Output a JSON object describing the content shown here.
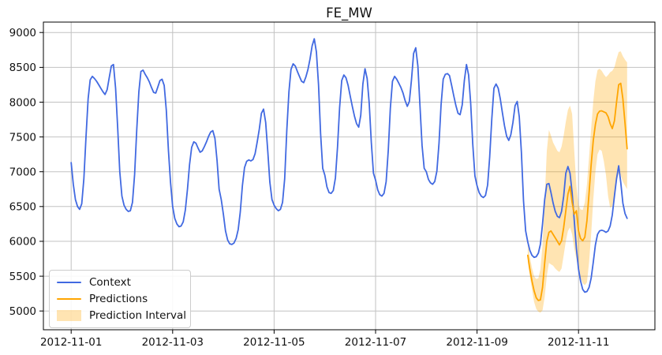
{
  "title": "FE_MW",
  "legend": {
    "items": [
      {
        "label": "Context",
        "type": "line",
        "color": "#4169e1"
      },
      {
        "label": "Predictions",
        "type": "line",
        "color": "#ffa500"
      },
      {
        "label": "Prediction Interval",
        "type": "patch",
        "color": "#ffa500",
        "opacity": 0.3
      }
    ]
  },
  "chart_data": {
    "type": "line",
    "title": "FE_MW",
    "xlabel": "",
    "ylabel": "",
    "grid": true,
    "legend_position": "lower left",
    "x_unit": "hours since 2012-11-01 00:00",
    "xlim": [
      -13.15,
      276.15
    ],
    "ylim": [
      4730,
      9150
    ],
    "x_ticks": [
      {
        "pos": 0,
        "label": "2012-11-01"
      },
      {
        "pos": 48,
        "label": "2012-11-03"
      },
      {
        "pos": 96,
        "label": "2012-11-05"
      },
      {
        "pos": 144,
        "label": "2012-11-07"
      },
      {
        "pos": 192,
        "label": "2012-11-09"
      },
      {
        "pos": 240,
        "label": "2012-11-11"
      }
    ],
    "y_ticks": [
      5000,
      5500,
      6000,
      6500,
      7000,
      7500,
      8000,
      8500,
      9000
    ],
    "colors": {
      "context": "#4169e1",
      "predictions": "#ffa500",
      "interval_fill": "#ffa500",
      "interval_opacity": 0.3,
      "grid": "#c2c2c2",
      "spine": "#000000"
    },
    "series": [
      {
        "name": "Context",
        "color": "#4169e1",
        "x_start": 0,
        "values": [
          7130,
          6820,
          6600,
          6500,
          6460,
          6540,
          6900,
          7500,
          8050,
          8320,
          8370,
          8340,
          8300,
          8250,
          8200,
          8150,
          8110,
          8180,
          8350,
          8520,
          8540,
          8200,
          7620,
          7000,
          6650,
          6520,
          6460,
          6430,
          6440,
          6560,
          6960,
          7600,
          8150,
          8440,
          8460,
          8400,
          8350,
          8290,
          8210,
          8140,
          8130,
          8220,
          8310,
          8330,
          8240,
          7880,
          7300,
          6850,
          6500,
          6330,
          6250,
          6210,
          6220,
          6280,
          6450,
          6750,
          7100,
          7350,
          7430,
          7410,
          7340,
          7280,
          7300,
          7360,
          7430,
          7510,
          7570,
          7590,
          7480,
          7160,
          6750,
          6600,
          6390,
          6150,
          6020,
          5965,
          5955,
          5975,
          6040,
          6170,
          6420,
          6800,
          7060,
          7150,
          7170,
          7155,
          7175,
          7260,
          7430,
          7610,
          7840,
          7900,
          7710,
          7290,
          6850,
          6600,
          6520,
          6470,
          6440,
          6460,
          6560,
          6900,
          7600,
          8150,
          8470,
          8550,
          8520,
          8440,
          8370,
          8300,
          8280,
          8360,
          8470,
          8620,
          8810,
          8910,
          8720,
          8250,
          7550,
          7050,
          6950,
          6780,
          6700,
          6690,
          6730,
          6910,
          7360,
          7920,
          8310,
          8390,
          8350,
          8240,
          8090,
          7940,
          7800,
          7690,
          7640,
          7810,
          8260,
          8480,
          8340,
          7990,
          7420,
          6980,
          6880,
          6740,
          6670,
          6650,
          6690,
          6860,
          7310,
          7910,
          8300,
          8370,
          8330,
          8270,
          8210,
          8130,
          8020,
          7940,
          8010,
          8320,
          8700,
          8780,
          8520,
          7960,
          7380,
          7050,
          7000,
          6890,
          6840,
          6820,
          6860,
          7010,
          7410,
          7960,
          8330,
          8400,
          8410,
          8380,
          8240,
          8090,
          7950,
          7840,
          7820,
          7960,
          8310,
          8540,
          8390,
          7990,
          7390,
          6940,
          6800,
          6700,
          6650,
          6630,
          6660,
          6810,
          7210,
          7760,
          8200,
          8260,
          8200,
          8050,
          7850,
          7660,
          7510,
          7450,
          7530,
          7710,
          7950,
          8010,
          7790,
          7280,
          6580,
          6150,
          5990,
          5870,
          5800,
          5770,
          5780,
          5830,
          5960,
          6250,
          6600,
          6820,
          6830,
          6700,
          6550,
          6430,
          6360,
          6340,
          6430,
          6650,
          6980,
          7075,
          6980,
          6700,
          6300,
          5900,
          5600,
          5430,
          5310,
          5270,
          5280,
          5340,
          5470,
          5700,
          5950,
          6100,
          6150,
          6160,
          6150,
          6130,
          6150,
          6220,
          6380,
          6650,
          6900,
          7085,
          6850,
          6550,
          6400,
          6330
        ]
      },
      {
        "name": "Predictions",
        "color": "#ffa500",
        "x_start": 216,
        "values": [
          5800,
          5600,
          5430,
          5290,
          5190,
          5150,
          5160,
          5340,
          5690,
          6000,
          6130,
          6150,
          6100,
          6050,
          6000,
          5950,
          6010,
          6200,
          6440,
          6680,
          6790,
          6560,
          6390,
          6440,
          6150,
          6040,
          6010,
          6060,
          6300,
          6700,
          7100,
          7450,
          7680,
          7830,
          7870,
          7875,
          7860,
          7845,
          7790,
          7690,
          7620,
          7730,
          8000,
          8250,
          8270,
          8050,
          7700,
          7330
        ]
      },
      {
        "name": "Prediction Interval",
        "band": true,
        "color": "#ffa500",
        "opacity": 0.3,
        "x_start": 216,
        "upper": [
          5950,
          5780,
          5620,
          5500,
          5460,
          5470,
          5600,
          5950,
          6600,
          7300,
          7600,
          7520,
          7420,
          7360,
          7300,
          7280,
          7360,
          7520,
          7720,
          7890,
          7950,
          7830,
          7300,
          6800,
          6520,
          6460,
          6450,
          6560,
          6820,
          7220,
          7620,
          8010,
          8300,
          8460,
          8480,
          8450,
          8400,
          8360,
          8390,
          8430,
          8450,
          8500,
          8620,
          8720,
          8730,
          8660,
          8610,
          8570
        ],
        "lower": [
          5700,
          5500,
          5310,
          5130,
          5030,
          4990,
          4975,
          5010,
          5200,
          5500,
          5690,
          5670,
          5650,
          5610,
          5580,
          5560,
          5610,
          5800,
          6000,
          6150,
          6200,
          6100,
          5900,
          5750,
          5600,
          5480,
          5400,
          5370,
          5410,
          5700,
          6100,
          6600,
          7000,
          7250,
          7320,
          7300,
          7150,
          6950,
          6650,
          6480,
          6510,
          6660,
          6850,
          6980,
          6950,
          6860,
          6800,
          6750
        ]
      }
    ]
  }
}
